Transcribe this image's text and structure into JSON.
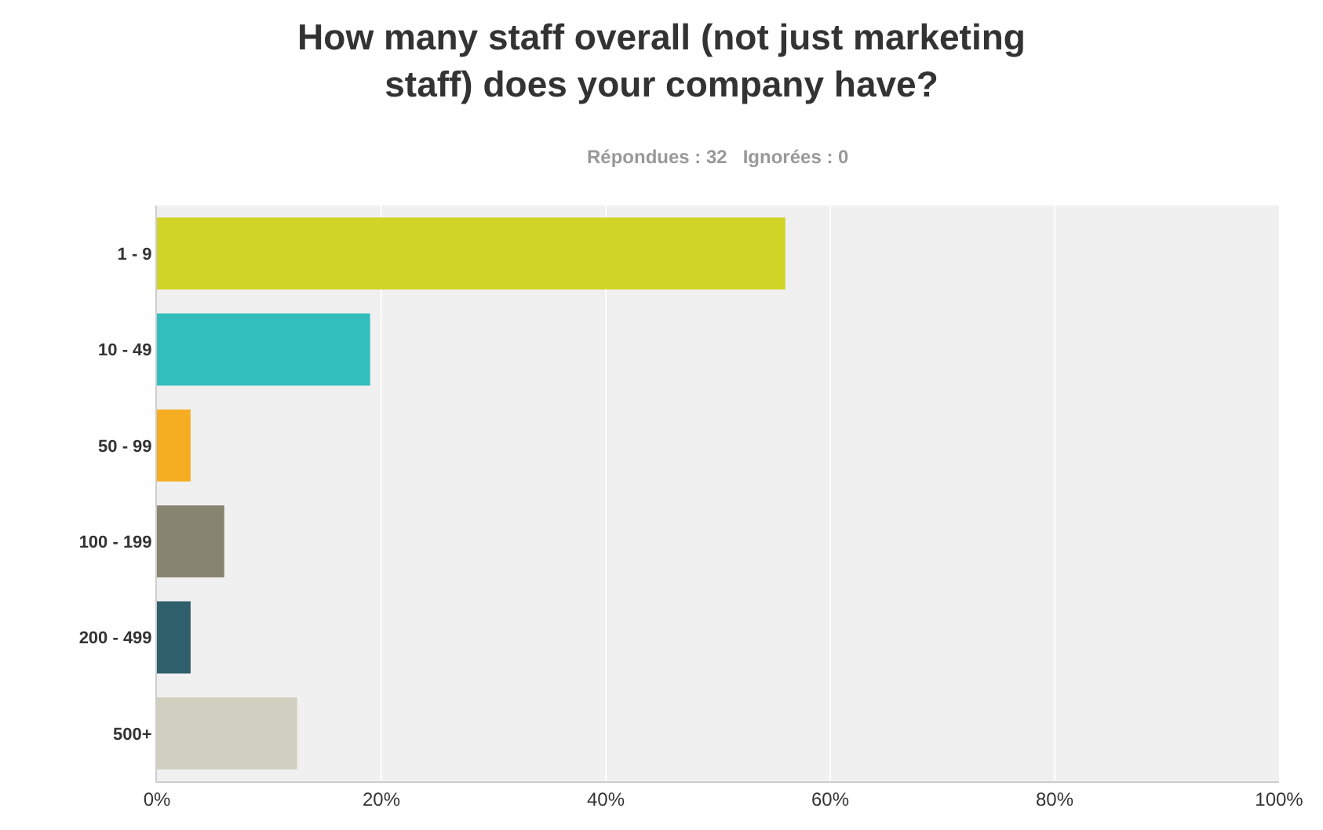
{
  "chart_data": {
    "type": "bar",
    "orientation": "horizontal",
    "title": "How many staff overall (not just marketing\nstaff) does your company have?",
    "subtitle": "Répondues : 32   Ignorées : 0",
    "categories": [
      "1 - 9",
      "10 - 49",
      "50 - 99",
      "100 - 199",
      "200 - 499",
      "500+"
    ],
    "values": [
      56,
      19,
      3,
      6,
      3,
      12.5
    ],
    "colors": [
      "#d0d426",
      "#33bebe",
      "#f5ae22",
      "#878570",
      "#2f5f6b",
      "#d0cfc0"
    ],
    "xlim": [
      0,
      100
    ],
    "xticks": [
      {
        "value": 0,
        "label": "0%"
      },
      {
        "value": 20,
        "label": "20%"
      },
      {
        "value": 40,
        "label": "40%"
      },
      {
        "value": 60,
        "label": "60%"
      },
      {
        "value": 80,
        "label": "80%"
      },
      {
        "value": 100,
        "label": "100%"
      }
    ],
    "grid": "x"
  }
}
